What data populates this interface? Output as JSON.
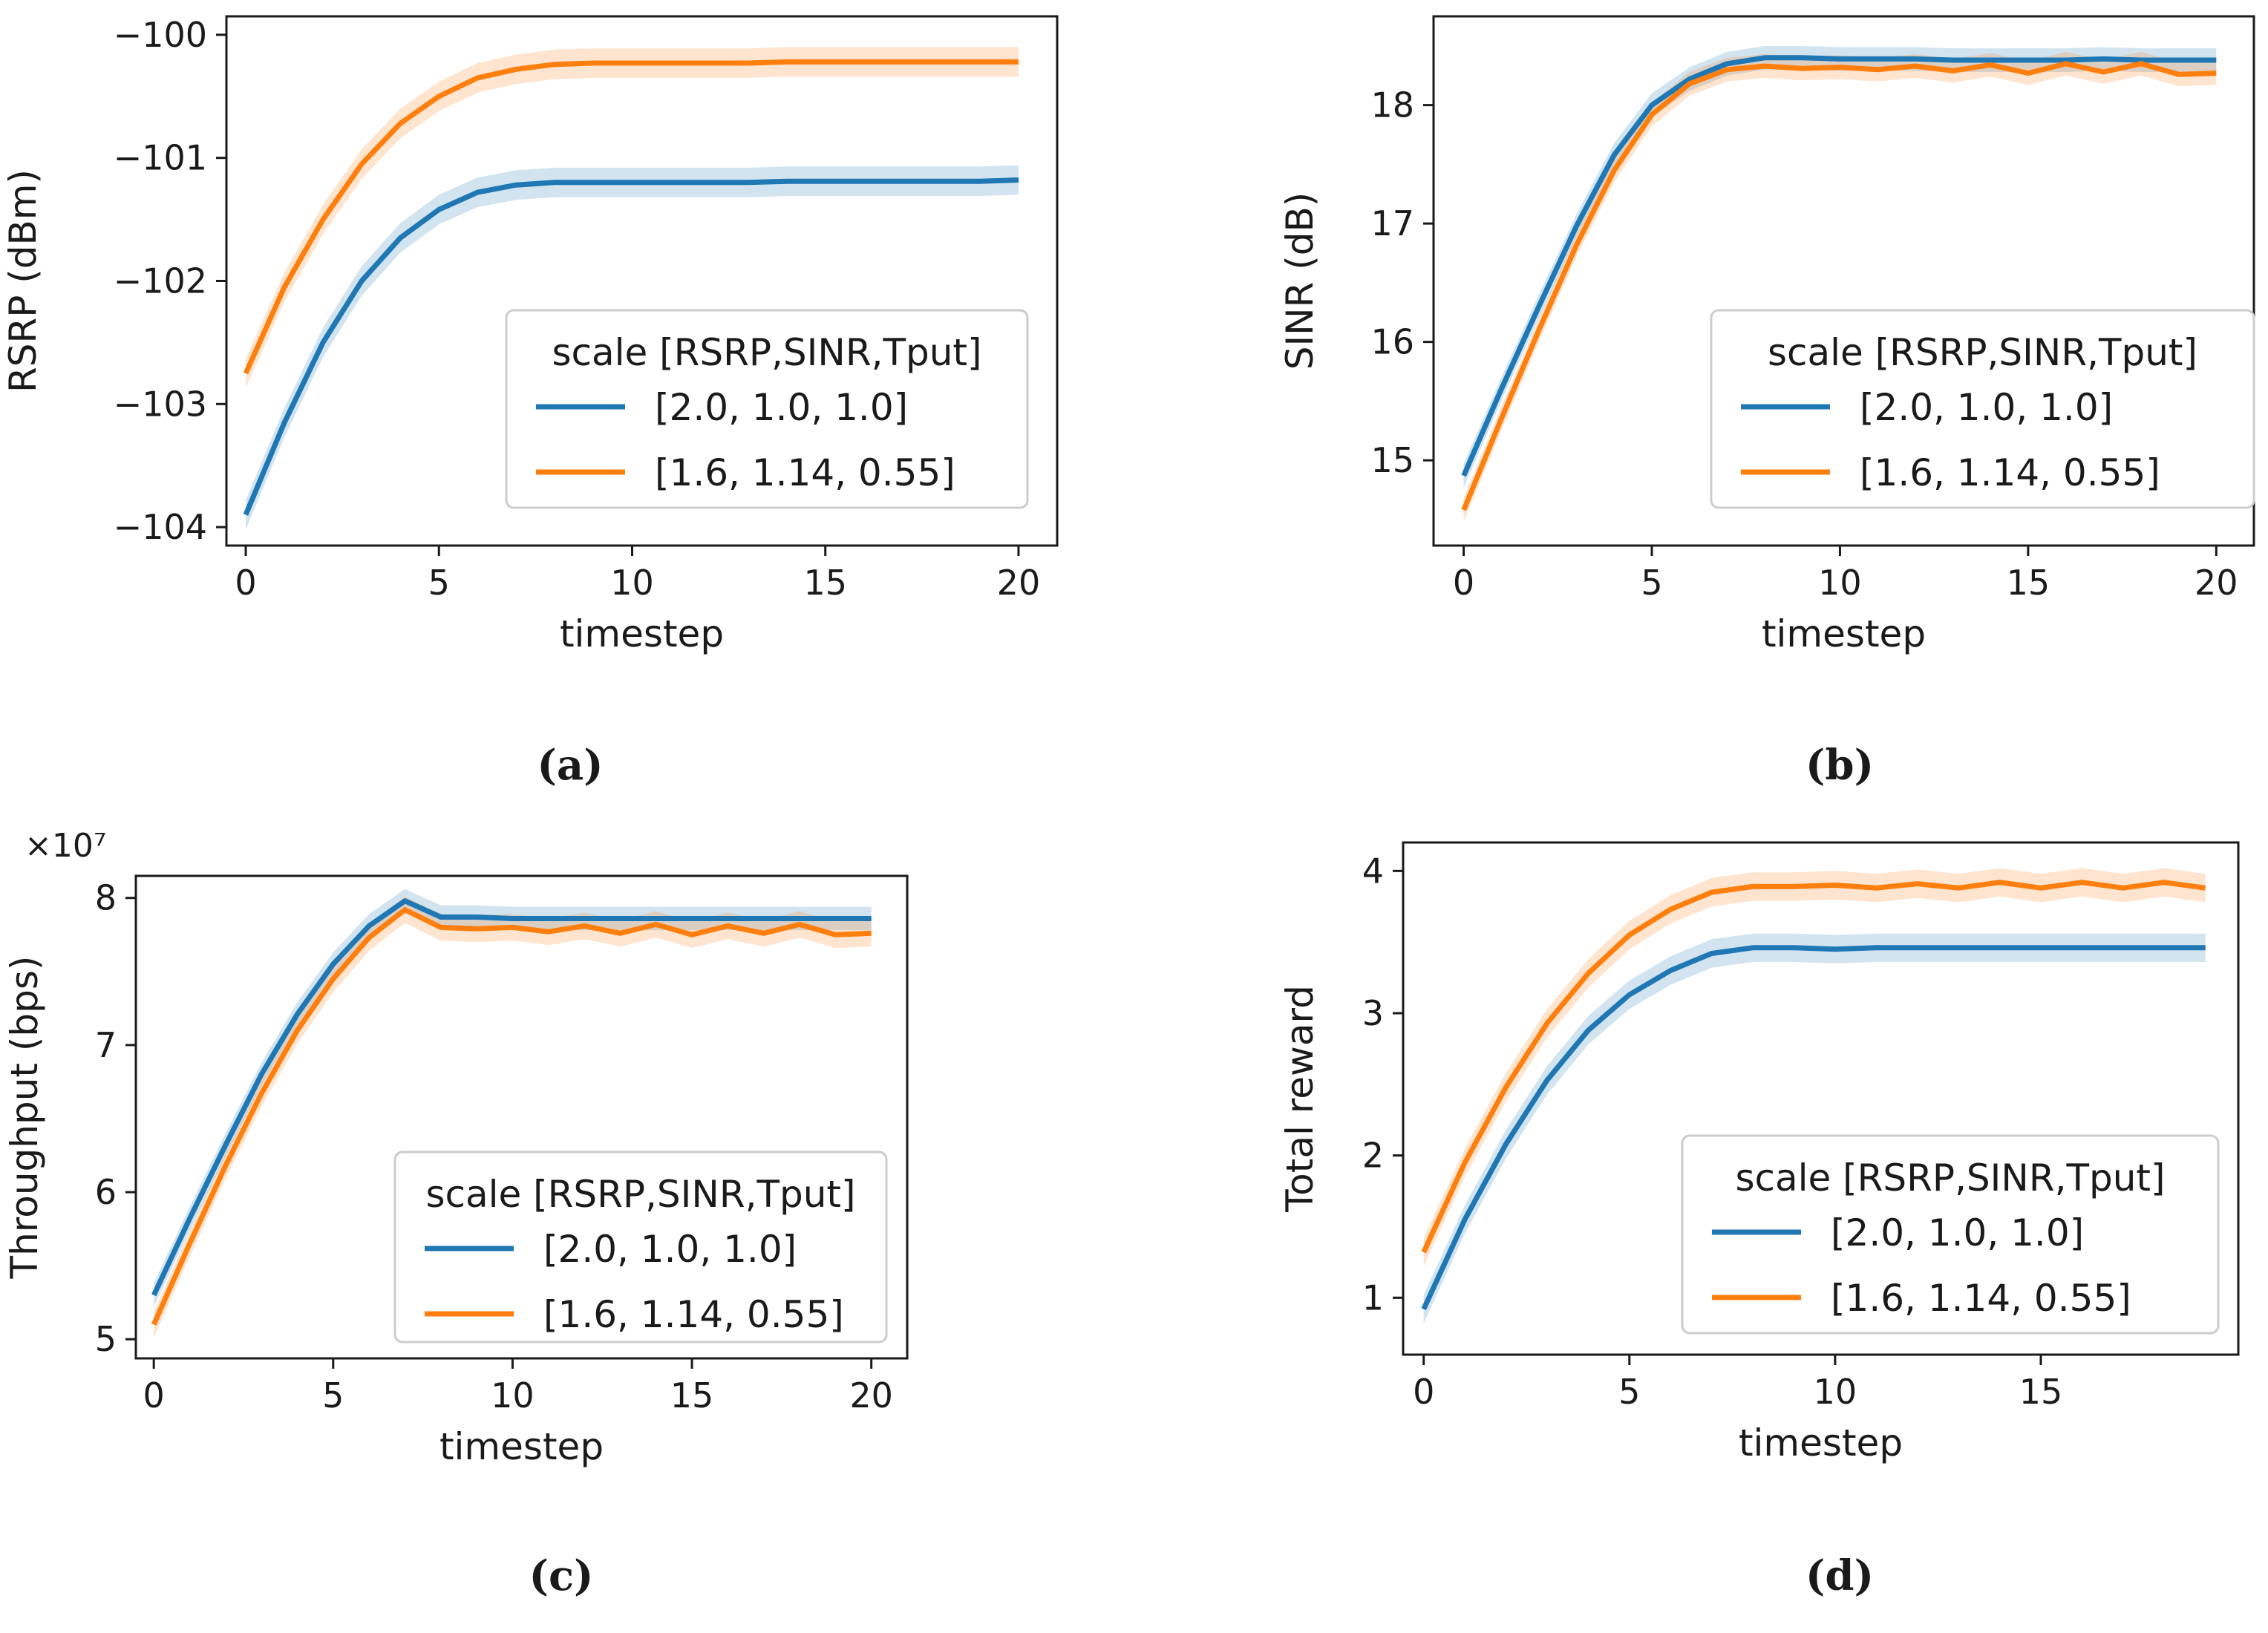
{
  "chart_data": [
    {
      "type": "line",
      "panel": "a",
      "caption": "(a)",
      "xlabel": "timestep",
      "ylabel": "RSRP (dBm)",
      "xlim": [
        -0.5,
        21
      ],
      "ylim": [
        -104.15,
        -99.85
      ],
      "xticks": [
        0,
        5,
        10,
        15,
        20
      ],
      "xtick_labels": [
        "0",
        "5",
        "10",
        "15",
        "20"
      ],
      "yticks": [
        -104,
        -103,
        -102,
        -101,
        -100
      ],
      "ytick_labels": [
        "−104",
        "−103",
        "−102",
        "−101",
        "−100"
      ],
      "x": [
        0,
        1,
        2,
        3,
        4,
        5,
        6,
        7,
        8,
        9,
        10,
        11,
        12,
        13,
        14,
        15,
        16,
        17,
        18,
        19,
        20
      ],
      "series": [
        {
          "name": "[2.0, 1.0, 1.0]",
          "color": "#1f77b4",
          "band": 0.12,
          "values": [
            -103.9,
            -103.15,
            -102.5,
            -102.0,
            -101.65,
            -101.42,
            -101.28,
            -101.22,
            -101.2,
            -101.2,
            -101.2,
            -101.2,
            -101.2,
            -101.2,
            -101.19,
            -101.19,
            -101.19,
            -101.19,
            -101.19,
            -101.19,
            -101.18
          ]
        },
        {
          "name": "[1.6, 1.14, 0.55]",
          "color": "#ff7f0e",
          "band": 0.12,
          "values": [
            -102.75,
            -102.05,
            -101.5,
            -101.05,
            -100.72,
            -100.5,
            -100.35,
            -100.28,
            -100.24,
            -100.23,
            -100.23,
            -100.23,
            -100.23,
            -100.23,
            -100.22,
            -100.22,
            -100.22,
            -100.22,
            -100.22,
            -100.22,
            -100.22
          ]
        }
      ],
      "legend": {
        "title": "scale [RSRP,SINR,Tput]",
        "position": "lower-right"
      }
    },
    {
      "type": "line",
      "panel": "b",
      "caption": "(b)",
      "xlabel": "timestep",
      "ylabel": "SINR (dB)",
      "xlim": [
        -0.8,
        21
      ],
      "ylim": [
        14.28,
        18.75
      ],
      "xticks": [
        0,
        5,
        10,
        15,
        20
      ],
      "xtick_labels": [
        "0",
        "5",
        "10",
        "15",
        "20"
      ],
      "yticks": [
        15,
        16,
        17,
        18
      ],
      "ytick_labels": [
        "15",
        "16",
        "17",
        "18"
      ],
      "x": [
        0,
        1,
        2,
        3,
        4,
        5,
        6,
        7,
        8,
        9,
        10,
        11,
        12,
        13,
        14,
        15,
        16,
        17,
        18,
        19,
        20
      ],
      "series": [
        {
          "name": "[2.0, 1.0, 1.0]",
          "color": "#1f77b4",
          "band": 0.1,
          "values": [
            14.87,
            15.6,
            16.3,
            16.98,
            17.58,
            18.0,
            18.22,
            18.35,
            18.4,
            18.4,
            18.39,
            18.39,
            18.39,
            18.38,
            18.38,
            18.38,
            18.38,
            18.39,
            18.38,
            18.38,
            18.38
          ]
        },
        {
          "name": "[1.6, 1.14, 0.55]",
          "color": "#ff7f0e",
          "band": 0.1,
          "values": [
            14.58,
            15.35,
            16.1,
            16.82,
            17.45,
            17.92,
            18.18,
            18.3,
            18.33,
            18.31,
            18.32,
            18.3,
            18.33,
            18.29,
            18.34,
            18.27,
            18.35,
            18.28,
            18.35,
            18.26,
            18.27
          ]
        }
      ],
      "legend": {
        "title": "scale [RSRP,SINR,Tput]",
        "position": "lower-right"
      }
    },
    {
      "type": "line",
      "panel": "c",
      "caption": "(c)",
      "xlabel": "timestep",
      "ylabel": "Throughput (bps)",
      "offset_label": "×10⁷",
      "xlim": [
        -0.5,
        21
      ],
      "ylim": [
        4.87,
        8.15
      ],
      "xticks": [
        0,
        5,
        10,
        15,
        20
      ],
      "xtick_labels": [
        "0",
        "5",
        "10",
        "15",
        "20"
      ],
      "yticks": [
        5,
        6,
        7,
        8
      ],
      "ytick_labels": [
        "5",
        "6",
        "7",
        "8"
      ],
      "x": [
        0,
        1,
        2,
        3,
        4,
        5,
        6,
        7,
        8,
        9,
        10,
        11,
        12,
        13,
        14,
        15,
        16,
        17,
        18,
        19,
        20
      ],
      "series": [
        {
          "name": "[2.0, 1.0, 1.0]",
          "color": "#1f77b4",
          "band": 0.08,
          "values": [
            5.3,
            5.82,
            6.32,
            6.8,
            7.21,
            7.55,
            7.81,
            7.98,
            7.87,
            7.87,
            7.86,
            7.86,
            7.86,
            7.86,
            7.86,
            7.86,
            7.86,
            7.86,
            7.86,
            7.86,
            7.86
          ]
        },
        {
          "name": "[1.6, 1.14, 0.55]",
          "color": "#ff7f0e",
          "band": 0.09,
          "values": [
            5.1,
            5.65,
            6.18,
            6.67,
            7.1,
            7.45,
            7.73,
            7.92,
            7.8,
            7.79,
            7.8,
            7.77,
            7.81,
            7.76,
            7.82,
            7.75,
            7.81,
            7.76,
            7.82,
            7.75,
            7.76
          ]
        }
      ],
      "legend": {
        "title": "scale [RSRP,SINR,Tput]",
        "position": "lower-right"
      }
    },
    {
      "type": "line",
      "panel": "d",
      "caption": "(d)",
      "xlabel": "timestep",
      "ylabel": "Total reward",
      "xlim": [
        -0.5,
        19.8
      ],
      "ylim": [
        0.6,
        4.2
      ],
      "xticks": [
        0,
        5,
        10,
        15
      ],
      "xtick_labels": [
        "0",
        "5",
        "10",
        "15"
      ],
      "yticks": [
        1,
        2,
        3,
        4
      ],
      "ytick_labels": [
        "1",
        "2",
        "3",
        "4"
      ],
      "x": [
        0,
        1,
        2,
        3,
        4,
        5,
        6,
        7,
        8,
        9,
        10,
        11,
        12,
        13,
        14,
        15,
        16,
        17,
        18,
        19
      ],
      "series": [
        {
          "name": "[2.0, 1.0, 1.0]",
          "color": "#1f77b4",
          "band": 0.1,
          "values": [
            0.92,
            1.55,
            2.08,
            2.53,
            2.88,
            3.13,
            3.3,
            3.42,
            3.46,
            3.46,
            3.45,
            3.46,
            3.46,
            3.46,
            3.46,
            3.46,
            3.46,
            3.46,
            3.46,
            3.46
          ]
        },
        {
          "name": "[1.6, 1.14, 0.55]",
          "color": "#ff7f0e",
          "band": 0.1,
          "values": [
            1.32,
            1.95,
            2.48,
            2.93,
            3.28,
            3.55,
            3.73,
            3.85,
            3.89,
            3.89,
            3.9,
            3.88,
            3.91,
            3.88,
            3.92,
            3.88,
            3.92,
            3.88,
            3.92,
            3.88
          ]
        }
      ],
      "legend": {
        "title": "scale [RSRP,SINR,Tput]",
        "position": "lower-right"
      }
    }
  ]
}
